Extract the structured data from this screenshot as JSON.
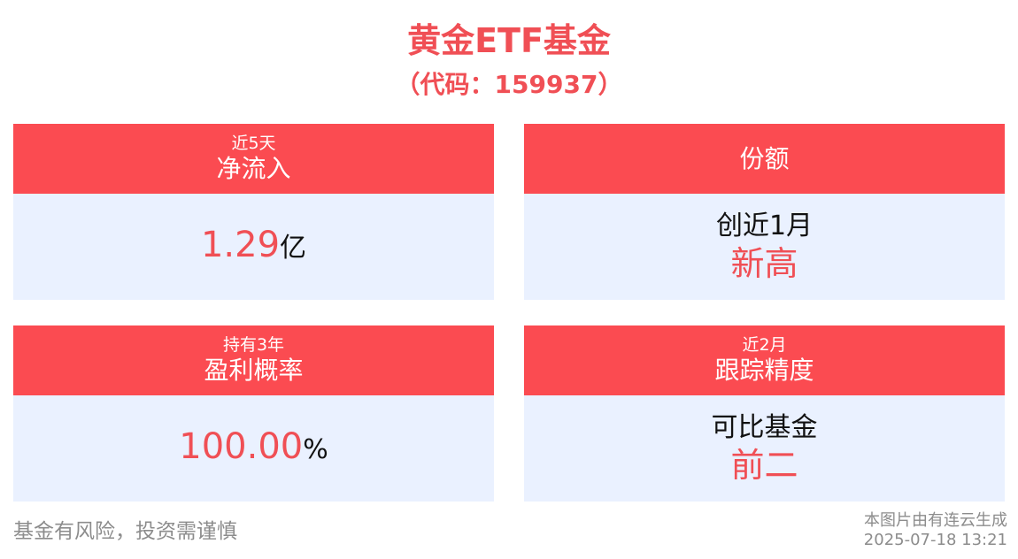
{
  "title": "黄金ETF基金",
  "subtitle": "（代码：159937）",
  "cards": [
    {
      "header_small": "近5天",
      "header_big": "净流入",
      "value": "1.29",
      "unit": "亿"
    },
    {
      "header_big": "份额",
      "line1": "创近1月",
      "line2": "新高"
    },
    {
      "header_small": "持有3年",
      "header_big": "盈利概率",
      "value": "100.00",
      "unit": "%"
    },
    {
      "header_small": "近2月",
      "header_big": "跟踪精度",
      "line1": "可比基金",
      "line2": "前二"
    }
  ],
  "footer": {
    "risk_text": "基金有风险，投资需谨慎",
    "generated_by": "本图片由有连云生成",
    "timestamp": "2025-07-18 13:21"
  },
  "colors": {
    "accent_red": "#f04f55",
    "header_red": "#fb4b51",
    "panel_blue": "#eaf1ff",
    "muted_gray": "#8c8c8c"
  }
}
